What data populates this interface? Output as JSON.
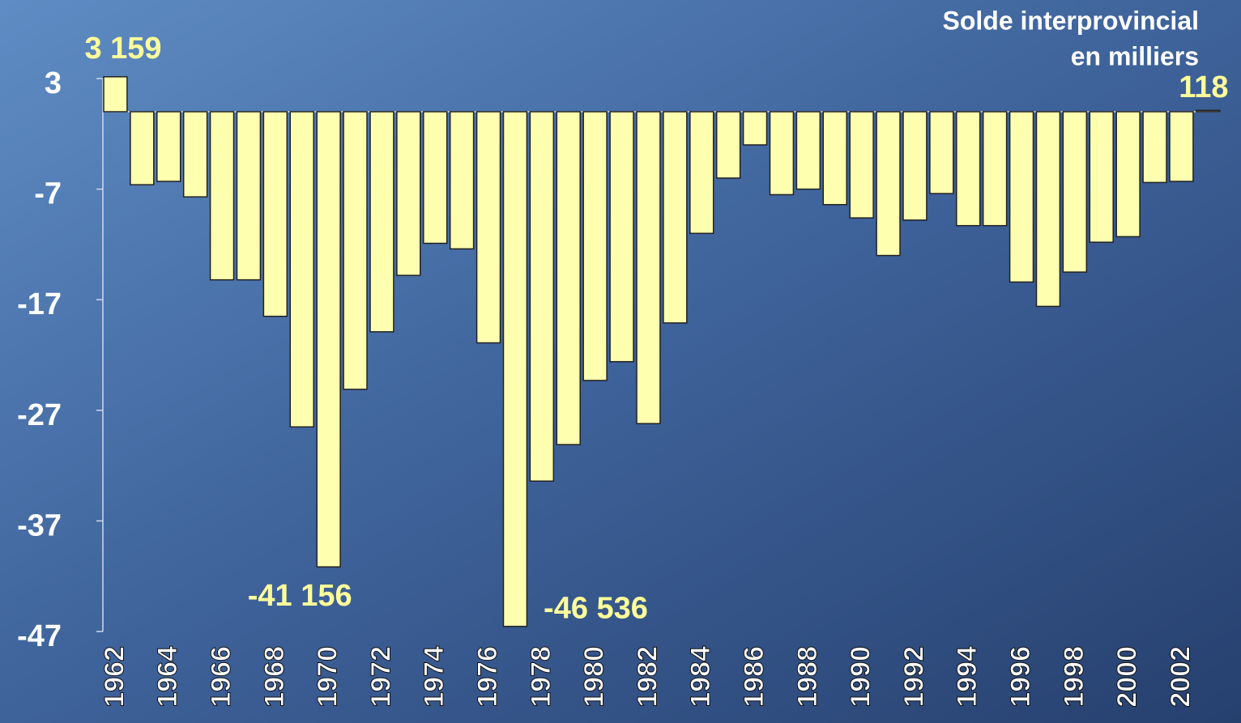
{
  "chart_data": {
    "type": "bar",
    "title": "Solde interprovincial",
    "subtitle": "en milliers",
    "categories": [
      "1962",
      null,
      "1964",
      null,
      "1966",
      null,
      "1968",
      null,
      "1970",
      null,
      "1972",
      null,
      "1974",
      null,
      "1976",
      null,
      "1978",
      null,
      "1980",
      null,
      "1982",
      null,
      "1984",
      null,
      "1986",
      null,
      "1988",
      null,
      "1990",
      null,
      "1992",
      null,
      "1994",
      null,
      "1996",
      null,
      "1998",
      null,
      "2000",
      null,
      "2002",
      null
    ],
    "values": [
      3.159,
      -6.6,
      -6.3,
      -7.7,
      -15.2,
      -15.2,
      -18.5,
      -28.5,
      -41.156,
      -25.1,
      -19.9,
      -14.8,
      -11.9,
      -12.4,
      -20.9,
      -46.536,
      -33.4,
      -30.1,
      -24.3,
      -22.6,
      -28.2,
      -19.1,
      -11.0,
      -6.0,
      -3.0,
      -7.5,
      -7.0,
      -8.4,
      -9.6,
      -13.0,
      -9.8,
      -7.4,
      -10.3,
      -10.3,
      -15.4,
      -17.6,
      -14.5,
      -11.8,
      -11.3,
      -6.4,
      -6.3,
      0.118
    ],
    "value_labels": [
      "3 159",
      null,
      null,
      null,
      null,
      null,
      null,
      null,
      "-41 156",
      null,
      null,
      null,
      null,
      null,
      null,
      "-46 536",
      null,
      null,
      null,
      null,
      null,
      null,
      null,
      null,
      null,
      null,
      null,
      null,
      null,
      null,
      null,
      null,
      null,
      null,
      null,
      null,
      null,
      null,
      null,
      null,
      null,
      "118"
    ],
    "color": "#ffffb0",
    "ylim": [
      -47,
      3
    ],
    "yticks": [
      3,
      -7,
      -17,
      -27,
      -37,
      -47
    ]
  }
}
